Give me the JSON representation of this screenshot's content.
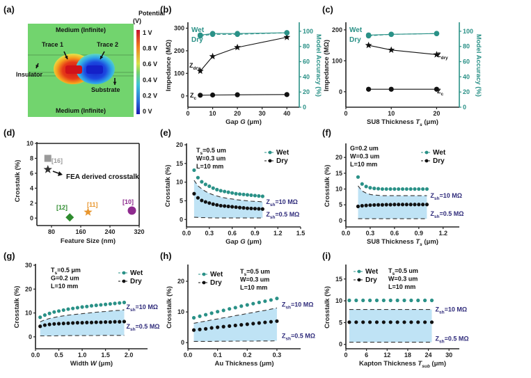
{
  "chart_data": [
    {
      "panel": "(a)",
      "type": "heatmap",
      "title": "",
      "colorbar": {
        "title": "Potential (V)",
        "ticks": [
          "1 V",
          "0.8 V",
          "0.6 V",
          "0.4 V",
          "0.2 V",
          "0 V"
        ],
        "range": [
          0,
          1
        ]
      },
      "labels": [
        "Medium (Infinite)",
        "Trace 1",
        "Trace 2",
        "Insulator",
        "Substrate",
        "Medium (Infinite)"
      ],
      "background_value": 0.5,
      "trace1_value": 1.0,
      "trace2_value": 0.0
    },
    {
      "panel": "(b)",
      "type": "line",
      "xlabel": "Gap G (μm)",
      "ylabel": "Impedance (MΩ)",
      "y2label": "Model Accuracy (%)",
      "xlim": [
        0,
        45
      ],
      "ylim": [
        -50,
        320
      ],
      "y2lim": [
        0,
        110
      ],
      "xticks": [
        0,
        10,
        20,
        30,
        40
      ],
      "yticks": [
        0,
        100,
        200,
        300
      ],
      "y2ticks": [
        0,
        20,
        40,
        60,
        80,
        100
      ],
      "x": [
        5,
        10,
        20,
        40
      ],
      "series": [
        {
          "name": "Zdry",
          "label": "Z",
          "sub": "dry",
          "axis": "left",
          "marker": "star",
          "values": [
            110,
            175,
            215,
            260
          ]
        },
        {
          "name": "Zc",
          "label": "Z",
          "sub": "c",
          "axis": "left",
          "marker": "circle",
          "values": [
            3,
            4,
            5,
            6
          ]
        },
        {
          "name": "Wet",
          "axis": "right",
          "marker": "circle",
          "values": [
            95,
            97,
            97,
            98
          ]
        },
        {
          "name": "Dry",
          "axis": "right",
          "marker": "circle",
          "dashed": true,
          "values": [
            94,
            96,
            96,
            98
          ]
        }
      ],
      "legend": [
        "Wet",
        "Dry"
      ]
    },
    {
      "panel": "(c)",
      "type": "line",
      "xlabel": "SU8 Thickness Ts (μm)",
      "ylabel": "Impedance (MΩ)",
      "y2label": "Model Accuracy (%)",
      "xlim": [
        0,
        25
      ],
      "ylim": [
        -50,
        220
      ],
      "y2lim": [
        0,
        110
      ],
      "xticks": [
        0,
        10,
        20
      ],
      "yticks": [
        0,
        100,
        200
      ],
      "y2ticks": [
        0,
        20,
        40,
        60,
        80,
        100
      ],
      "x": [
        5,
        10,
        20
      ],
      "series": [
        {
          "name": "Zdry",
          "label": "Z",
          "sub": "dry",
          "axis": "left",
          "marker": "star",
          "values": [
            150,
            135,
            120
          ]
        },
        {
          "name": "Zc",
          "label": "Z",
          "sub": "c",
          "axis": "left",
          "marker": "circle",
          "values": [
            8,
            8,
            8
          ]
        },
        {
          "name": "Wet",
          "axis": "right",
          "marker": "circle",
          "values": [
            95,
            96,
            97
          ]
        },
        {
          "name": "Dry",
          "axis": "right",
          "marker": "circle",
          "dashed": true,
          "values": [
            94,
            96,
            97
          ]
        }
      ],
      "legend": [
        "Wet",
        "Dry"
      ]
    },
    {
      "panel": "(d)",
      "type": "scatter",
      "xlabel": "Feature Size (nm)",
      "ylabel": "Crosstalk (%)",
      "xlim": [
        40,
        320
      ],
      "ylim": [
        -1,
        10
      ],
      "xticks": [
        80,
        160,
        240,
        320
      ],
      "yticks": [
        0,
        2,
        4,
        6,
        8,
        10
      ],
      "points": [
        {
          "label": "[16]",
          "x": 70,
          "y": 8,
          "marker": "square",
          "color": "#9a9a9a"
        },
        {
          "label": "FEA derived crosstalk",
          "x": 70,
          "y": 6.5,
          "marker": "star",
          "color": "#333333"
        },
        {
          "label": "[12]",
          "x": 130,
          "y": 0.1,
          "marker": "diamond",
          "color": "#2e8b2e"
        },
        {
          "label": "[11]",
          "x": 180,
          "y": 0.8,
          "marker": "star",
          "color": "#e8962e"
        },
        {
          "label": "[10]",
          "x": 300,
          "y": 1.0,
          "marker": "circle",
          "color": "#8e2a8e"
        }
      ]
    },
    {
      "panel": "(e)",
      "type": "scatter",
      "xlabel": "Gap G (μm)",
      "ylabel": "Crosstalk (%)",
      "xlim": [
        0,
        1.5
      ],
      "ylim": [
        -2,
        20
      ],
      "xticks": [
        "0.0",
        "0.3",
        "0.6",
        "0.9",
        "1.2",
        "1.5"
      ],
      "yticks": [
        0,
        5,
        10,
        15,
        20
      ],
      "annotation": [
        "Ts=0.5 um",
        "W=0.3 um",
        "L=10 mm"
      ],
      "legend": [
        "Wet",
        "Dry"
      ],
      "band_x": [
        0.1,
        1.0
      ],
      "zsh_labels": [
        "Zsh=10 MΩ",
        "Zsh=0.5 MΩ"
      ],
      "x": [
        0.1,
        0.15,
        0.2,
        0.25,
        0.3,
        0.35,
        0.4,
        0.45,
        0.5,
        0.55,
        0.6,
        0.65,
        0.7,
        0.75,
        0.8,
        0.85,
        0.9,
        0.95,
        1.0
      ],
      "series": [
        {
          "name": "Wet",
          "values": [
            13.2,
            11.2,
            10.1,
            9.4,
            8.9,
            8.4,
            8.0,
            7.7,
            7.5,
            7.3,
            7.1,
            6.9,
            6.8,
            6.7,
            6.6,
            6.5,
            6.4,
            6.3,
            6.2
          ]
        },
        {
          "name": "Dry",
          "values": [
            6.9,
            5.8,
            5.1,
            4.7,
            4.4,
            4.1,
            3.9,
            3.7,
            3.6,
            3.5,
            3.4,
            3.3,
            3.2,
            3.1,
            3.0,
            2.95,
            2.9,
            2.85,
            2.8
          ]
        },
        {
          "name": "Zsh=10 MΩ",
          "dashed": true,
          "values": [
            10.5,
            9.0,
            8.2,
            7.5,
            7.0,
            6.6,
            6.3,
            6.0,
            5.8,
            5.6,
            5.5,
            5.3,
            5.2,
            5.1,
            5.0,
            4.9,
            4.85,
            4.8,
            4.7
          ]
        },
        {
          "name": "Zsh=0.5 MΩ",
          "dashed": true,
          "values": [
            0.6,
            0.55,
            0.5,
            0.5,
            0.45,
            0.45,
            0.4,
            0.4,
            0.4,
            0.4,
            0.4,
            0.4,
            0.4,
            0.4,
            0.4,
            0.4,
            0.4,
            0.4,
            0.4
          ]
        }
      ]
    },
    {
      "panel": "(f)",
      "type": "scatter",
      "xlabel": "SU8 Thickness Ts (μm)",
      "ylabel": "Crosstalk (%)",
      "xlim": [
        0,
        1.4
      ],
      "ylim": [
        -2,
        24
      ],
      "xticks": [
        "0.0",
        "0.3",
        "0.6",
        "0.9",
        "1.2"
      ],
      "yticks": [
        0,
        5,
        10,
        15,
        20
      ],
      "annotation": [
        "G=0.2 um",
        "W=0.3 um",
        "L=10 mm"
      ],
      "legend": [
        "Wet",
        "Dry"
      ],
      "band_x": [
        0.15,
        1.0
      ],
      "zsh_labels": [
        "Zsh=10 MΩ",
        "Zsh=0.5 MΩ"
      ],
      "x": [
        0.15,
        0.2,
        0.25,
        0.3,
        0.35,
        0.4,
        0.45,
        0.5,
        0.55,
        0.6,
        0.65,
        0.7,
        0.75,
        0.8,
        0.85,
        0.9,
        0.95,
        1.0
      ],
      "series": [
        {
          "name": "Wet",
          "values": [
            13.8,
            11.6,
            10.8,
            10.4,
            10.2,
            10.1,
            10.0,
            10.0,
            10.0,
            10.0,
            10.0,
            10.0,
            10.0,
            10.0,
            10.0,
            10.0,
            10.0,
            10.0
          ]
        },
        {
          "name": "Dry",
          "values": [
            4.5,
            4.7,
            4.8,
            4.9,
            4.95,
            5.0,
            5.0,
            5.05,
            5.05,
            5.1,
            5.1,
            5.1,
            5.1,
            5.1,
            5.1,
            5.1,
            5.1,
            5.1
          ]
        },
        {
          "name": "Zsh=10 MΩ",
          "dashed": true,
          "values": [
            11.0,
            9.4,
            8.7,
            8.3,
            8.1,
            8.0,
            7.9,
            7.9,
            7.9,
            7.9,
            7.9,
            7.9,
            7.9,
            7.9,
            7.9,
            7.9,
            7.9,
            7.9
          ]
        },
        {
          "name": "Zsh=0.5 MΩ",
          "dashed": true,
          "values": [
            0.6,
            0.6,
            0.6,
            0.6,
            0.6,
            0.6,
            0.6,
            0.6,
            0.6,
            0.6,
            0.6,
            0.6,
            0.6,
            0.6,
            0.6,
            0.6,
            0.6,
            0.6
          ]
        }
      ]
    },
    {
      "panel": "(g)",
      "type": "scatter",
      "xlabel": "Width W (μm)",
      "ylabel": "Crosstalk (%)",
      "xlim": [
        0,
        2.4
      ],
      "ylim": [
        -5,
        30
      ],
      "xticks": [
        "0.0",
        "0.5",
        "1.0",
        "1.5",
        "2.0"
      ],
      "yticks": [
        0,
        10,
        20,
        30
      ],
      "annotation": [
        "Ts=0.5 μm",
        "G=0.2 um",
        "L=10 mm"
      ],
      "legend": [
        "Wet",
        "Dry"
      ],
      "band_x": [
        0.1,
        1.9
      ],
      "zsh_labels": [
        "Zsh=10 MΩ",
        "Zsh=0.5 MΩ"
      ],
      "x": [
        0.1,
        0.2,
        0.3,
        0.4,
        0.5,
        0.6,
        0.7,
        0.8,
        0.9,
        1.0,
        1.1,
        1.2,
        1.3,
        1.4,
        1.5,
        1.6,
        1.7,
        1.8,
        1.9
      ],
      "series": [
        {
          "name": "Wet",
          "values": [
            8.2,
            9.1,
            9.8,
            10.4,
            10.8,
            11.2,
            11.6,
            11.9,
            12.2,
            12.5,
            12.7,
            13.0,
            13.2,
            13.4,
            13.6,
            13.8,
            14.0,
            14.2,
            14.4
          ]
        },
        {
          "name": "Dry",
          "values": [
            4.4,
            4.9,
            5.2,
            5.4,
            5.5,
            5.6,
            5.7,
            5.8,
            5.9,
            5.9,
            6.0,
            6.0,
            6.1,
            6.1,
            6.2,
            6.2,
            6.3,
            6.3,
            6.4
          ]
        },
        {
          "name": "Zsh=10 MΩ",
          "dashed": true,
          "values": [
            6.3,
            7.1,
            7.7,
            8.1,
            8.5,
            8.8,
            9.1,
            9.3,
            9.5,
            9.7,
            9.9,
            10.1,
            10.3,
            10.5,
            10.6,
            10.8,
            11.0,
            11.1,
            11.3
          ]
        },
        {
          "name": "Zsh=0.5 MΩ",
          "dashed": true,
          "values": [
            0.4,
            0.4,
            0.4,
            0.4,
            0.45,
            0.45,
            0.5,
            0.5,
            0.5,
            0.5,
            0.55,
            0.55,
            0.55,
            0.6,
            0.6,
            0.6,
            0.6,
            0.6,
            0.6
          ]
        }
      ]
    },
    {
      "panel": "(h)",
      "type": "scatter",
      "xlabel": "Au Thickness (μm)",
      "ylabel": "Crosstalk (%)",
      "xlim": [
        0,
        0.38
      ],
      "ylim": [
        -2,
        25
      ],
      "xticks": [
        "0.0",
        "0.1",
        "0.2",
        "0.3"
      ],
      "yticks": [
        0,
        10,
        20
      ],
      "annotation": [
        "Ts=0.5 um",
        "W=0.3 um",
        "L=10 mm"
      ],
      "legend": [
        "Wet",
        "Dry"
      ],
      "band_x": [
        0.02,
        0.3
      ],
      "zsh_labels": [
        "Zsh=10 MΩ",
        "Zsh=0.5 MΩ"
      ],
      "x": [
        0.02,
        0.04,
        0.06,
        0.08,
        0.1,
        0.12,
        0.14,
        0.16,
        0.18,
        0.2,
        0.22,
        0.24,
        0.26,
        0.28,
        0.3
      ],
      "series": [
        {
          "name": "Wet",
          "values": [
            8.1,
            8.6,
            9.1,
            9.6,
            10.1,
            10.5,
            11.0,
            11.4,
            11.9,
            12.3,
            12.7,
            13.1,
            13.5,
            13.9,
            14.4
          ]
        },
        {
          "name": "Dry",
          "values": [
            4.1,
            4.3,
            4.5,
            4.8,
            5.0,
            5.2,
            5.4,
            5.6,
            5.8,
            6.0,
            6.2,
            6.4,
            6.6,
            6.8,
            7.0
          ]
        },
        {
          "name": "Zsh=10 MΩ",
          "dashed": true,
          "values": [
            6.3,
            6.7,
            7.0,
            7.4,
            7.7,
            8.1,
            8.4,
            8.8,
            9.1,
            9.5,
            9.8,
            10.2,
            10.5,
            10.9,
            11.3
          ]
        },
        {
          "name": "Zsh=0.5 MΩ",
          "dashed": true,
          "values": [
            0.4,
            0.4,
            0.4,
            0.4,
            0.45,
            0.45,
            0.45,
            0.5,
            0.5,
            0.5,
            0.5,
            0.55,
            0.55,
            0.55,
            0.6
          ]
        }
      ]
    },
    {
      "panel": "(i)",
      "type": "scatter",
      "xlabel": "Kapton Thickness Tsub (μm)",
      "ylabel": "Crosstalk (%)",
      "xlim": [
        0,
        33
      ],
      "ylim": [
        -1,
        18
      ],
      "xticks": [
        0,
        6,
        12,
        18,
        24,
        30
      ],
      "yticks": [
        0,
        5,
        10,
        15
      ],
      "annotation": [
        "Ts=0.5 um",
        "W=0.3 um",
        "L=10 mm"
      ],
      "legend": [
        "Wet",
        "Dry"
      ],
      "band_x": [
        1,
        25
      ],
      "zsh_labels": [
        "Zsh=10 MΩ",
        "Zsh=0.5 MΩ"
      ],
      "x": [
        1,
        3,
        5,
        7,
        9,
        11,
        13,
        15,
        17,
        19,
        21,
        23,
        25
      ],
      "series": [
        {
          "name": "Wet",
          "values": [
            10.1,
            10.1,
            10.1,
            10.1,
            10.1,
            10.1,
            10.1,
            10.1,
            10.1,
            10.1,
            10.1,
            10.1,
            10.1
          ]
        },
        {
          "name": "Dry",
          "values": [
            5.1,
            5.1,
            5.1,
            5.1,
            5.1,
            5.1,
            5.1,
            5.1,
            5.1,
            5.1,
            5.1,
            5.1,
            5.1
          ]
        },
        {
          "name": "Zsh=10 MΩ",
          "dashed": true,
          "values": [
            8.0,
            8.0,
            8.0,
            8.0,
            8.0,
            8.0,
            8.0,
            8.0,
            8.0,
            8.0,
            8.0,
            8.0,
            8.0
          ]
        },
        {
          "name": "Zsh=0.5 MΩ",
          "dashed": true,
          "values": [
            0.5,
            0.5,
            0.5,
            0.5,
            0.5,
            0.5,
            0.5,
            0.5,
            0.5,
            0.5,
            0.5,
            0.5,
            0.5
          ]
        }
      ]
    }
  ],
  "colors": {
    "wet": "#2a9187",
    "dry": "#111111",
    "band": "#bfe3f5",
    "zsh_label": "#2e2a7a",
    "field_bg": "#72d46e"
  }
}
